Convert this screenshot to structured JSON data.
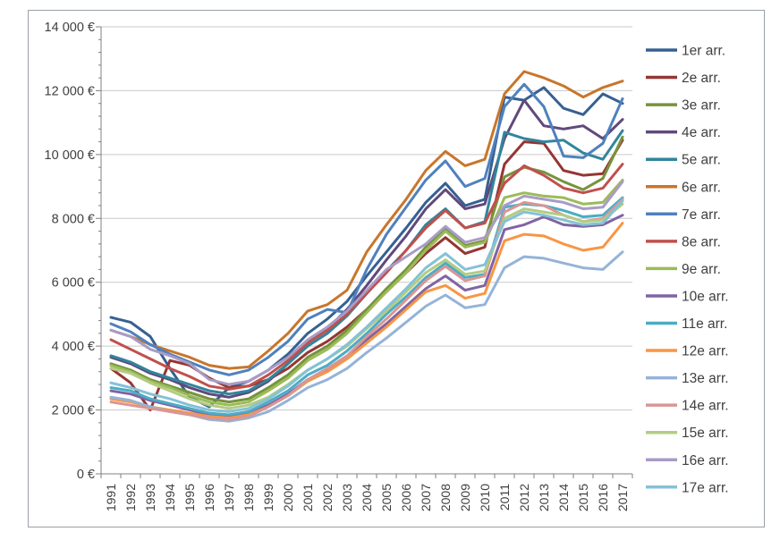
{
  "chart_data": {
    "type": "line",
    "title": "",
    "xlabel": "",
    "ylabel": "",
    "x": [
      "1991",
      "1992",
      "1993",
      "1994",
      "1995",
      "1996",
      "1997",
      "1998",
      "1999",
      "2000",
      "2001",
      "2002",
      "2003",
      "2004",
      "2005",
      "2006",
      "2007",
      "2008",
      "2009",
      "2010",
      "2011",
      "2012",
      "2013",
      "2014",
      "2015",
      "2016",
      "2017"
    ],
    "y_axis": {
      "min": 0,
      "max": 14000,
      "major_unit": 2000,
      "minor_unit": 400,
      "labels": [
        "0 €",
        "2 000 €",
        "4 000 €",
        "6 000 €",
        "8 000 €",
        "10 000 €",
        "12 000 €",
        "14 000 €"
      ]
    },
    "grid": true,
    "legend_position": "right",
    "colors": {
      "gridline": "#c9c9c9",
      "axis": "#808080",
      "frame_border": "#9aa0a6",
      "label_text": "#404040"
    },
    "series": [
      {
        "name": "1er arr.",
        "color": "#366092",
        "values": [
          4900,
          4750,
          4300,
          3300,
          2400,
          2100,
          2700,
          2900,
          3250,
          3750,
          4400,
          4850,
          5400,
          6200,
          6950,
          7700,
          8500,
          9100,
          8400,
          8600,
          11800,
          11700,
          12100,
          11450,
          11250,
          11900,
          11600
        ]
      },
      {
        "name": "2e arr.",
        "color": "#943634",
        "values": [
          3300,
          2850,
          2000,
          3550,
          3400,
          3000,
          2700,
          2750,
          2950,
          3300,
          3800,
          4150,
          4600,
          5150,
          5700,
          6300,
          6900,
          7400,
          6900,
          7100,
          9700,
          10400,
          10350,
          9500,
          9350,
          9400,
          10450
        ]
      },
      {
        "name": "3e arr.",
        "color": "#77933C",
        "values": [
          3450,
          3250,
          2950,
          2750,
          2550,
          2350,
          2250,
          2350,
          2700,
          3100,
          3650,
          4000,
          4500,
          5150,
          5800,
          6400,
          7100,
          7700,
          7150,
          7300,
          9300,
          9600,
          9450,
          9150,
          8900,
          9250,
          10550
        ]
      },
      {
        "name": "4e arr.",
        "color": "#60497B",
        "values": [
          3650,
          3450,
          3150,
          2950,
          2700,
          2500,
          2400,
          2550,
          2900,
          3450,
          4100,
          4550,
          5150,
          5900,
          6700,
          7450,
          8300,
          8900,
          8300,
          8450,
          10500,
          11700,
          10900,
          10800,
          10900,
          10500,
          11100
        ]
      },
      {
        "name": "5e arr.",
        "color": "#31859C",
        "values": [
          3700,
          3500,
          3200,
          3000,
          2800,
          2600,
          2500,
          2600,
          2950,
          3450,
          4000,
          4400,
          4950,
          5650,
          6350,
          7000,
          7800,
          8300,
          7700,
          7900,
          10700,
          10500,
          10400,
          10450,
          10050,
          9850,
          10750
        ]
      },
      {
        "name": "6e arr.",
        "color": "#C8762B",
        "values": [
          4500,
          4300,
          4050,
          3850,
          3650,
          3400,
          3300,
          3350,
          3850,
          4400,
          5100,
          5300,
          5750,
          6950,
          7800,
          8600,
          9500,
          10100,
          9650,
          9850,
          11900,
          12600,
          12400,
          12150,
          11800,
          12100,
          12300
        ]
      },
      {
        "name": "7e arr.",
        "color": "#4F81BD",
        "values": [
          4700,
          4450,
          4050,
          3750,
          3500,
          3250,
          3100,
          3250,
          3650,
          4150,
          4850,
          5150,
          5050,
          6400,
          7500,
          8350,
          9200,
          9800,
          9000,
          9250,
          11500,
          12200,
          11500,
          9950,
          9900,
          10350,
          11750
        ]
      },
      {
        "name": "8e arr.",
        "color": "#C0504D",
        "values": [
          4200,
          3900,
          3600,
          3300,
          3050,
          2750,
          2650,
          2750,
          3100,
          3550,
          4100,
          4500,
          5000,
          5650,
          6300,
          7000,
          7700,
          8250,
          7700,
          7850,
          9100,
          9650,
          9350,
          8950,
          8800,
          8950,
          9700
        ]
      },
      {
        "name": "9e arr.",
        "color": "#9BBB59",
        "values": [
          3400,
          3200,
          2900,
          2700,
          2450,
          2250,
          2150,
          2250,
          2600,
          3000,
          3550,
          3900,
          4400,
          5050,
          5700,
          6300,
          7000,
          7600,
          7100,
          7250,
          8650,
          8800,
          8700,
          8650,
          8450,
          8500,
          9200
        ]
      },
      {
        "name": "10e arr.",
        "color": "#8064A2",
        "values": [
          2600,
          2500,
          2300,
          2150,
          2000,
          1850,
          1800,
          1900,
          2150,
          2500,
          2950,
          3250,
          3650,
          4200,
          4700,
          5250,
          5800,
          6200,
          5750,
          5900,
          7650,
          7800,
          8050,
          7800,
          7750,
          7800,
          8100
        ]
      },
      {
        "name": "11e arr.",
        "color": "#4BACC6",
        "values": [
          2700,
          2600,
          2350,
          2200,
          2050,
          1900,
          1850,
          1950,
          2250,
          2600,
          3100,
          3400,
          3850,
          4400,
          5000,
          5550,
          6150,
          6600,
          6150,
          6250,
          8350,
          8450,
          8400,
          8250,
          8050,
          8100,
          8650
        ]
      },
      {
        "name": "12e arr.",
        "color": "#F79646",
        "values": [
          2350,
          2250,
          2100,
          2000,
          1900,
          1800,
          1750,
          1850,
          2100,
          2450,
          2900,
          3200,
          3600,
          4100,
          4600,
          5150,
          5700,
          5900,
          5500,
          5650,
          7300,
          7500,
          7450,
          7200,
          7000,
          7100,
          7850
        ]
      },
      {
        "name": "13e arr.",
        "color": "#95B3D7",
        "values": [
          2400,
          2300,
          2100,
          1950,
          1850,
          1700,
          1650,
          1750,
          1950,
          2300,
          2700,
          2950,
          3300,
          3800,
          4250,
          4750,
          5250,
          5600,
          5200,
          5300,
          6450,
          6800,
          6750,
          6600,
          6450,
          6400,
          6950
        ]
      },
      {
        "name": "14e arr.",
        "color": "#D99694",
        "values": [
          2250,
          2150,
          2050,
          1950,
          1850,
          1750,
          1700,
          1800,
          2100,
          2450,
          2950,
          3300,
          3700,
          4300,
          4850,
          5450,
          6050,
          6500,
          6050,
          6200,
          8200,
          8500,
          8400,
          8100,
          7900,
          8000,
          8600
        ]
      },
      {
        "name": "15e arr.",
        "color": "#B3CC82",
        "values": [
          3300,
          3150,
          2850,
          2600,
          2350,
          2150,
          2050,
          2150,
          2400,
          2800,
          3250,
          3600,
          4000,
          4550,
          5100,
          5700,
          6300,
          6700,
          6250,
          6350,
          8000,
          8300,
          8200,
          8100,
          7900,
          7950,
          8450
        ]
      },
      {
        "name": "16e arr.",
        "color": "#A99BC6",
        "values": [
          4500,
          4300,
          3900,
          3700,
          3450,
          2950,
          2800,
          2900,
          3250,
          3650,
          4200,
          4600,
          5100,
          5750,
          6400,
          6800,
          7200,
          7750,
          7250,
          7400,
          8400,
          8700,
          8600,
          8500,
          8300,
          8350,
          9150
        ]
      },
      {
        "name": "17e arr.",
        "color": "#85C1D6",
        "values": [
          2850,
          2700,
          2500,
          2350,
          2150,
          2000,
          1950,
          2050,
          2350,
          2750,
          3250,
          3600,
          4050,
          4600,
          5200,
          5800,
          6450,
          6900,
          6400,
          6550,
          7900,
          8200,
          8100,
          7950,
          7800,
          7850,
          8550
        ]
      }
    ]
  }
}
